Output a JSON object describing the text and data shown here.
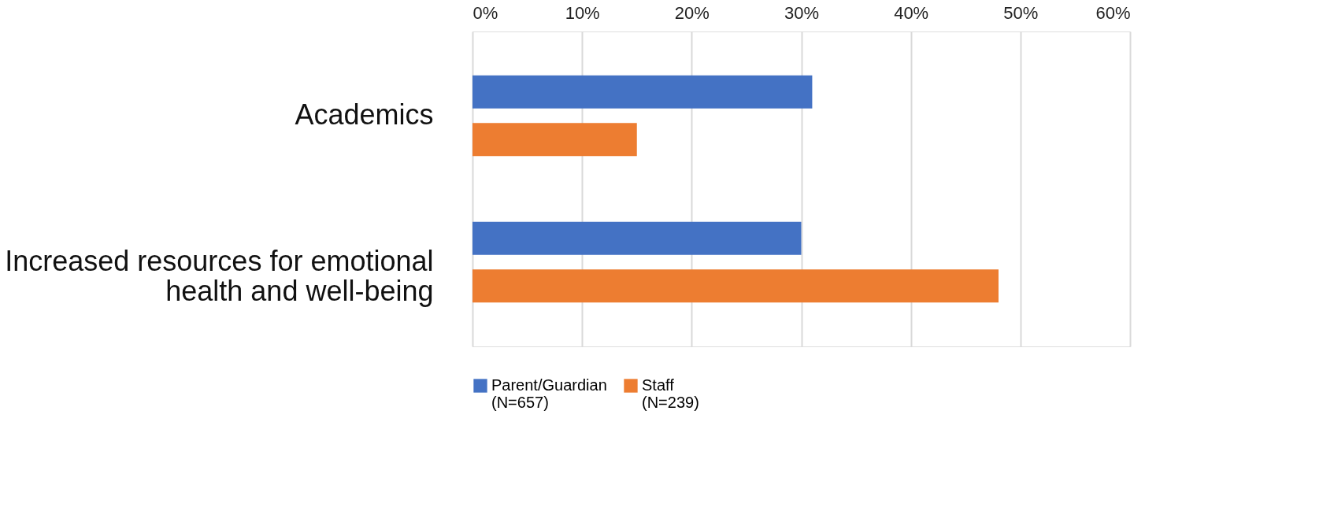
{
  "chart_data": {
    "type": "bar",
    "orientation": "horizontal",
    "categories": [
      "Academics",
      "Increased resources for emotional\nhealth and well-being"
    ],
    "series": [
      {
        "name": "Parent/Guardian\n(N=657)",
        "color": "#4472c4",
        "values": [
          31,
          30
        ]
      },
      {
        "name": "Staff\n(N=239)",
        "color": "#ed7d31",
        "values": [
          15,
          48
        ]
      }
    ],
    "xlim": [
      0,
      60
    ],
    "xticks": [
      {
        "value": 0,
        "label": "0%"
      },
      {
        "value": 10,
        "label": "10%"
      },
      {
        "value": 20,
        "label": "20%"
      },
      {
        "value": 30,
        "label": "30%"
      },
      {
        "value": 40,
        "label": "40%"
      },
      {
        "value": 50,
        "label": "50%"
      },
      {
        "value": 60,
        "label": "60%"
      }
    ],
    "grid": "x",
    "legend": "bottom"
  }
}
